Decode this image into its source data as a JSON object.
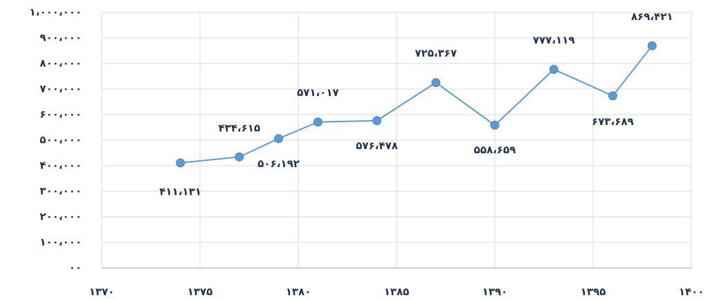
{
  "chart_data": {
    "type": "line",
    "x": [
      1374,
      1377,
      1379,
      1381,
      1384,
      1387,
      1390,
      1393,
      1396,
      1398
    ],
    "series": [
      {
        "name": null,
        "color": "#5b9bd5",
        "values": [
          411131,
          434615,
          506192,
          571017,
          576478,
          725367,
          558659,
          777119,
          673689,
          869421
        ],
        "value_labels": [
          "۴۱۱،۱۳۱",
          "۴۳۴،۶۱۵",
          "۵۰۶،۱۹۲",
          "۵۷۱،۰۱۷",
          "۵۷۶،۴۷۸",
          "۷۲۵،۳۶۷",
          "۵۵۸،۶۵۹",
          "۷۷۷،۱۱۹",
          "۶۷۳،۶۸۹",
          "۸۶۹،۴۲۱"
        ]
      }
    ],
    "xlim": [
      1370,
      1400
    ],
    "xticks": [
      {
        "value": 1370,
        "label": "۱۳۷۰"
      },
      {
        "value": 1375,
        "label": "۱۳۷۵"
      },
      {
        "value": 1380,
        "label": "۱۳۸۰"
      },
      {
        "value": 1385,
        "label": "۱۳۸۵"
      },
      {
        "value": 1390,
        "label": "۱۳۹۰"
      },
      {
        "value": 1395,
        "label": "۱۳۹۵"
      },
      {
        "value": 1400,
        "label": "۱۴۰۰"
      }
    ],
    "ylim": [
      0,
      1000000
    ],
    "yticks": [
      {
        "value": 0,
        "label": "۰۰"
      },
      {
        "value": 100000,
        "label": "۱۰۰،۰۰۰"
      },
      {
        "value": 200000,
        "label": "۲۰۰،۰۰۰"
      },
      {
        "value": 300000,
        "label": "۳۰۰،۰۰۰"
      },
      {
        "value": 400000,
        "label": "۴۰۰،۰۰۰"
      },
      {
        "value": 500000,
        "label": "۵۰۰،۰۰۰"
      },
      {
        "value": 600000,
        "label": "۶۰۰،۰۰۰"
      },
      {
        "value": 700000,
        "label": "۷۰۰،۰۰۰"
      },
      {
        "value": 800000,
        "label": "۸۰۰،۰۰۰"
      },
      {
        "value": 900000,
        "label": "۹۰۰،۰۰۰"
      },
      {
        "value": 1000000,
        "label": "۱،۰۰۰،۰۰۰"
      }
    ],
    "grid": true
  }
}
